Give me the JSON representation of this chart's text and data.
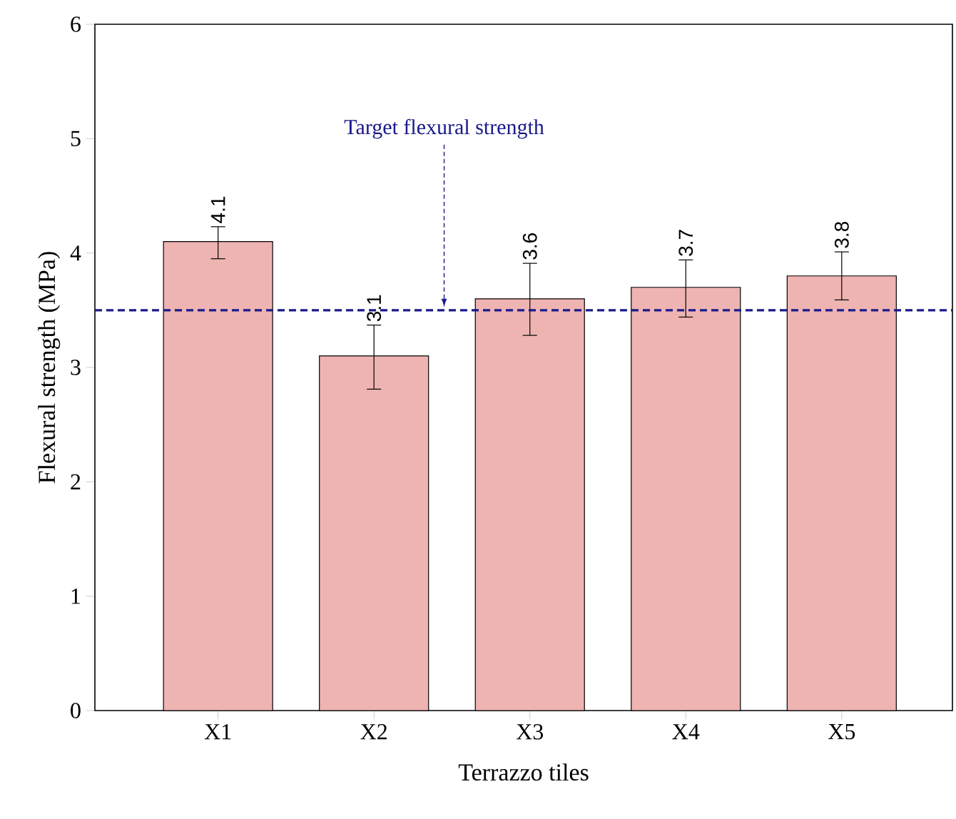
{
  "chart_data": {
    "type": "bar",
    "xlabel": "Terrazzo tiles",
    "ylabel": "Flexural strength (MPa)",
    "categories": [
      "X1",
      "X2",
      "X3",
      "X4",
      "X5"
    ],
    "values": [
      4.1,
      3.1,
      3.6,
      3.7,
      3.8
    ],
    "errors": [
      [
        3.95,
        4.23
      ],
      [
        2.81,
        3.37
      ],
      [
        3.28,
        3.91
      ],
      [
        3.44,
        3.94
      ],
      [
        3.59,
        4.01
      ]
    ],
    "color": "#eeb4b2",
    "data_labels": true,
    "ylim": [
      0,
      6
    ],
    "yticks": [
      0,
      1,
      2,
      3,
      4,
      5,
      6
    ],
    "ref_lines": [
      {
        "axis": "y",
        "value": 3.5,
        "label": "Target flexural strength",
        "color": "#1a1a8c",
        "line_style": "dashed"
      }
    ]
  }
}
